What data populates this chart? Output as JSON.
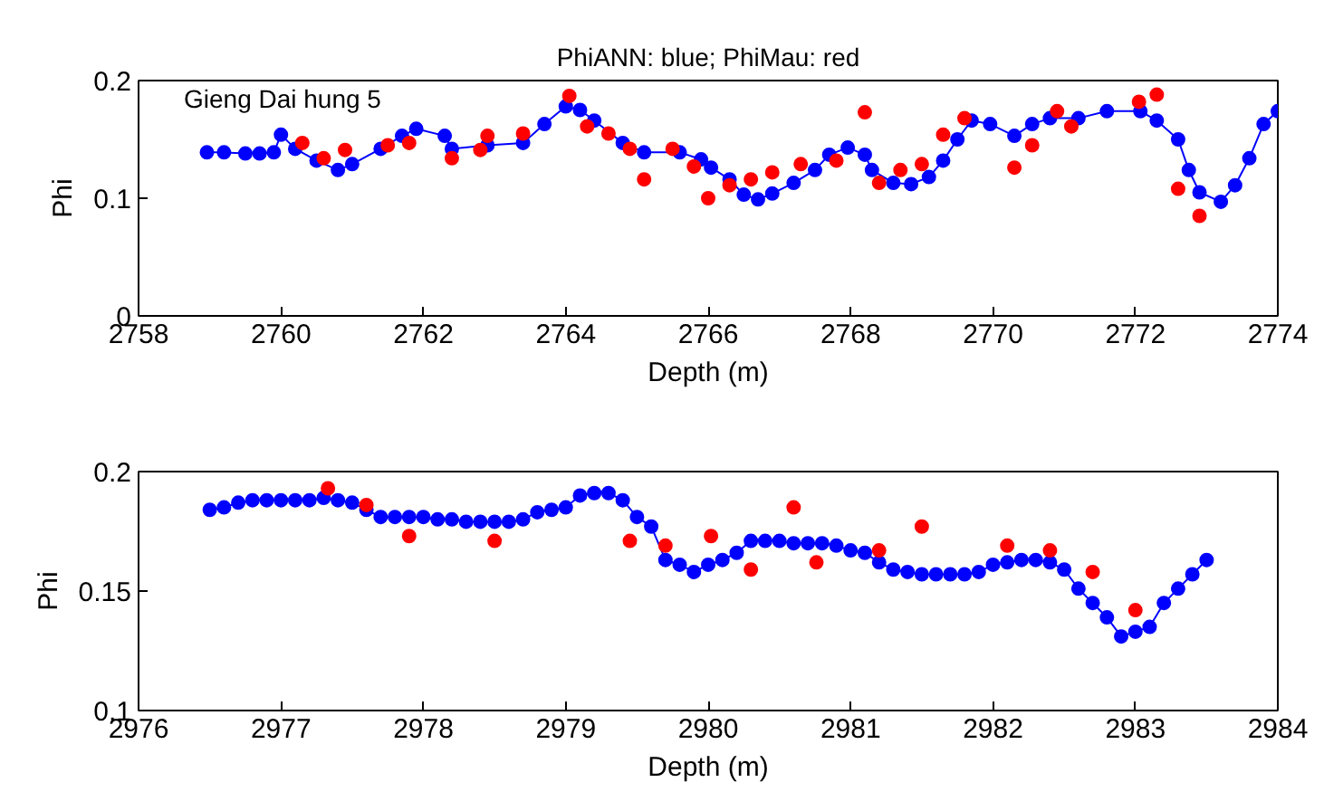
{
  "chart_data": [
    {
      "type": "scatter",
      "title": "PhiANN: blue; PhiMau: red",
      "xlabel": "Depth (m)",
      "ylabel": "Phi",
      "annotations": [
        "Gieng Dai hung 5"
      ],
      "xlim": [
        2758,
        2774
      ],
      "xticks": [
        2758,
        2760,
        2762,
        2764,
        2766,
        2768,
        2770,
        2772,
        2774
      ],
      "ylim": [
        0,
        0.2
      ],
      "yticks": [
        0,
        0.1,
        0.2
      ],
      "grid": false,
      "marker": "circle",
      "series": [
        {
          "type": "line",
          "color": "#0000ff",
          "line_style": "solid",
          "x": [
            2758.96,
            2759.2,
            2759.5,
            2759.7,
            2759.9,
            2760.0,
            2760.2,
            2760.5,
            2760.8,
            2761.0,
            2761.4,
            2761.7,
            2761.9,
            2762.3,
            2762.4,
            2762.9,
            2763.4,
            2763.7,
            2764.0,
            2764.2,
            2764.4,
            2764.8,
            2765.1,
            2765.6,
            2765.9,
            2766.04,
            2766.3,
            2766.5,
            2766.7,
            2766.9,
            2767.2,
            2767.5,
            2767.7,
            2767.96,
            2768.2,
            2768.3,
            2768.6,
            2768.85,
            2769.1,
            2769.3,
            2769.5,
            2769.7,
            2769.96,
            2770.3,
            2770.55,
            2770.8,
            2771.2,
            2771.6,
            2772.07,
            2772.3,
            2772.6,
            2772.75,
            2772.9,
            2773.2,
            2773.4,
            2773.6,
            2773.8,
            2774.0
          ],
          "values": [
            0.139,
            0.139,
            0.138,
            0.138,
            0.139,
            0.154,
            0.142,
            0.132,
            0.124,
            0.129,
            0.142,
            0.153,
            0.159,
            0.153,
            0.142,
            0.145,
            0.147,
            0.163,
            0.178,
            0.175,
            0.166,
            0.147,
            0.139,
            0.139,
            0.133,
            0.126,
            0.116,
            0.103,
            0.099,
            0.104,
            0.113,
            0.124,
            0.137,
            0.143,
            0.137,
            0.124,
            0.113,
            0.112,
            0.118,
            0.132,
            0.15,
            0.166,
            0.163,
            0.153,
            0.163,
            0.168,
            0.168,
            0.174,
            0.174,
            0.166,
            0.15,
            0.124,
            0.105,
            0.097,
            0.111,
            0.134,
            0.163,
            0.174
          ]
        },
        {
          "color": "#ff0000",
          "x": [
            2760.3,
            2760.6,
            2760.9,
            2761.5,
            2761.8,
            2762.4,
            2762.8,
            2762.9,
            2763.4,
            2764.05,
            2764.3,
            2764.6,
            2764.9,
            2765.1,
            2765.5,
            2765.8,
            2766.0,
            2766.3,
            2766.6,
            2766.9,
            2767.3,
            2767.8,
            2768.2,
            2768.4,
            2768.7,
            2769.0,
            2769.3,
            2769.6,
            2770.3,
            2770.55,
            2770.9,
            2771.1,
            2772.05,
            2772.3,
            2772.6,
            2772.9
          ],
          "values": [
            0.147,
            0.134,
            0.141,
            0.145,
            0.147,
            0.134,
            0.141,
            0.153,
            0.155,
            0.187,
            0.161,
            0.155,
            0.142,
            0.116,
            0.142,
            0.127,
            0.1,
            0.111,
            0.116,
            0.122,
            0.129,
            0.132,
            0.173,
            0.113,
            0.124,
            0.129,
            0.154,
            0.168,
            0.126,
            0.145,
            0.174,
            0.161,
            0.182,
            0.188,
            0.108,
            0.085
          ]
        }
      ]
    },
    {
      "type": "scatter",
      "xlabel": "Depth (m)",
      "ylabel": "Phi",
      "xlim": [
        2976,
        2984
      ],
      "xticks": [
        2976,
        2977,
        2978,
        2979,
        2980,
        2981,
        2982,
        2983,
        2984
      ],
      "ylim": [
        0.1,
        0.2
      ],
      "yticks": [
        0.1,
        0.15,
        0.2
      ],
      "grid": false,
      "marker": "circle",
      "series": [
        {
          "type": "line",
          "color": "#0000ff",
          "line_style": "solid",
          "x": [
            2976.5,
            2976.6,
            2976.7,
            2976.8,
            2976.9,
            2977.0,
            2977.1,
            2977.2,
            2977.3,
            2977.4,
            2977.5,
            2977.6,
            2977.7,
            2977.8,
            2977.9,
            2978.0,
            2978.1,
            2978.2,
            2978.3,
            2978.4,
            2978.5,
            2978.6,
            2978.7,
            2978.8,
            2978.9,
            2979.0,
            2979.1,
            2979.2,
            2979.3,
            2979.4,
            2979.5,
            2979.6,
            2979.7,
            2979.8,
            2979.9,
            2980.0,
            2980.1,
            2980.2,
            2980.3,
            2980.4,
            2980.5,
            2980.6,
            2980.7,
            2980.8,
            2980.9,
            2981.0,
            2981.1,
            2981.2,
            2981.3,
            2981.4,
            2981.5,
            2981.6,
            2981.7,
            2981.8,
            2981.9,
            2982.0,
            2982.1,
            2982.2,
            2982.3,
            2982.4,
            2982.5,
            2982.6,
            2982.7,
            2982.8,
            2982.9,
            2983.0,
            2983.1,
            2983.2,
            2983.3,
            2983.4,
            2983.5
          ],
          "values": [
            0.184,
            0.185,
            0.187,
            0.188,
            0.188,
            0.188,
            0.188,
            0.188,
            0.189,
            0.188,
            0.187,
            0.184,
            0.181,
            0.181,
            0.181,
            0.181,
            0.18,
            0.18,
            0.179,
            0.179,
            0.179,
            0.179,
            0.18,
            0.183,
            0.184,
            0.185,
            0.19,
            0.191,
            0.191,
            0.188,
            0.181,
            0.177,
            0.163,
            0.161,
            0.158,
            0.161,
            0.163,
            0.166,
            0.171,
            0.171,
            0.171,
            0.17,
            0.17,
            0.17,
            0.169,
            0.167,
            0.166,
            0.162,
            0.159,
            0.158,
            0.157,
            0.157,
            0.157,
            0.157,
            0.158,
            0.161,
            0.162,
            0.163,
            0.163,
            0.162,
            0.159,
            0.151,
            0.145,
            0.139,
            0.131,
            0.133,
            0.135,
            0.145,
            0.151,
            0.157,
            0.163
          ]
        },
        {
          "color": "#ff0000",
          "x": [
            2977.33,
            2977.6,
            2977.9,
            2978.5,
            2979.45,
            2979.7,
            2980.02,
            2980.3,
            2980.6,
            2980.76,
            2981.2,
            2981.5,
            2982.1,
            2982.4,
            2982.7,
            2983.0
          ],
          "values": [
            0.193,
            0.186,
            0.173,
            0.171,
            0.171,
            0.169,
            0.173,
            0.159,
            0.185,
            0.162,
            0.167,
            0.177,
            0.169,
            0.167,
            0.158,
            0.142
          ]
        }
      ]
    }
  ]
}
